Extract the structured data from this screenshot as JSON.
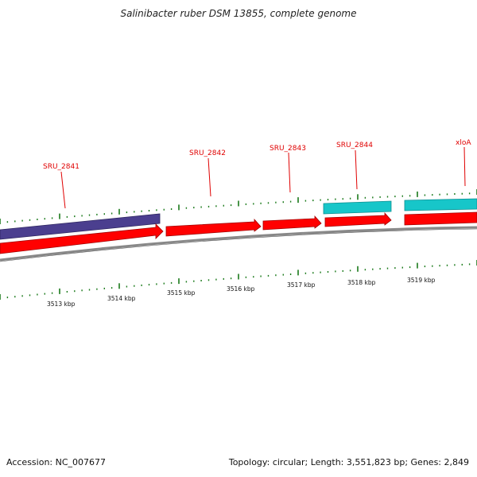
{
  "title": "Salinibacter ruber DSM 13855, complete genome",
  "footer": {
    "accession": "Accession: NC_007677",
    "summary": "Topology: circular; Length: 3,551,823 bp; Genes: 2,849"
  },
  "genes": [
    {
      "label": "SRU_2841"
    },
    {
      "label": "SRU_2842"
    },
    {
      "label": "SRU_2843"
    },
    {
      "label": "SRU_2844"
    },
    {
      "label": "xloA"
    }
  ],
  "kbp_ticks": [
    "3513 kbp",
    "3514 kbp",
    "3515 kbp",
    "3516 kbp",
    "3517 kbp",
    "3518 kbp",
    "3519 kbp"
  ],
  "colors": {
    "cds_forward": "#ff0000",
    "feature_purple": "#4b3f8f",
    "feature_cyan": "#17c6c9",
    "gene_label": "#e00000",
    "tick_green": "#1a7a1a",
    "backbone": "#888888"
  }
}
